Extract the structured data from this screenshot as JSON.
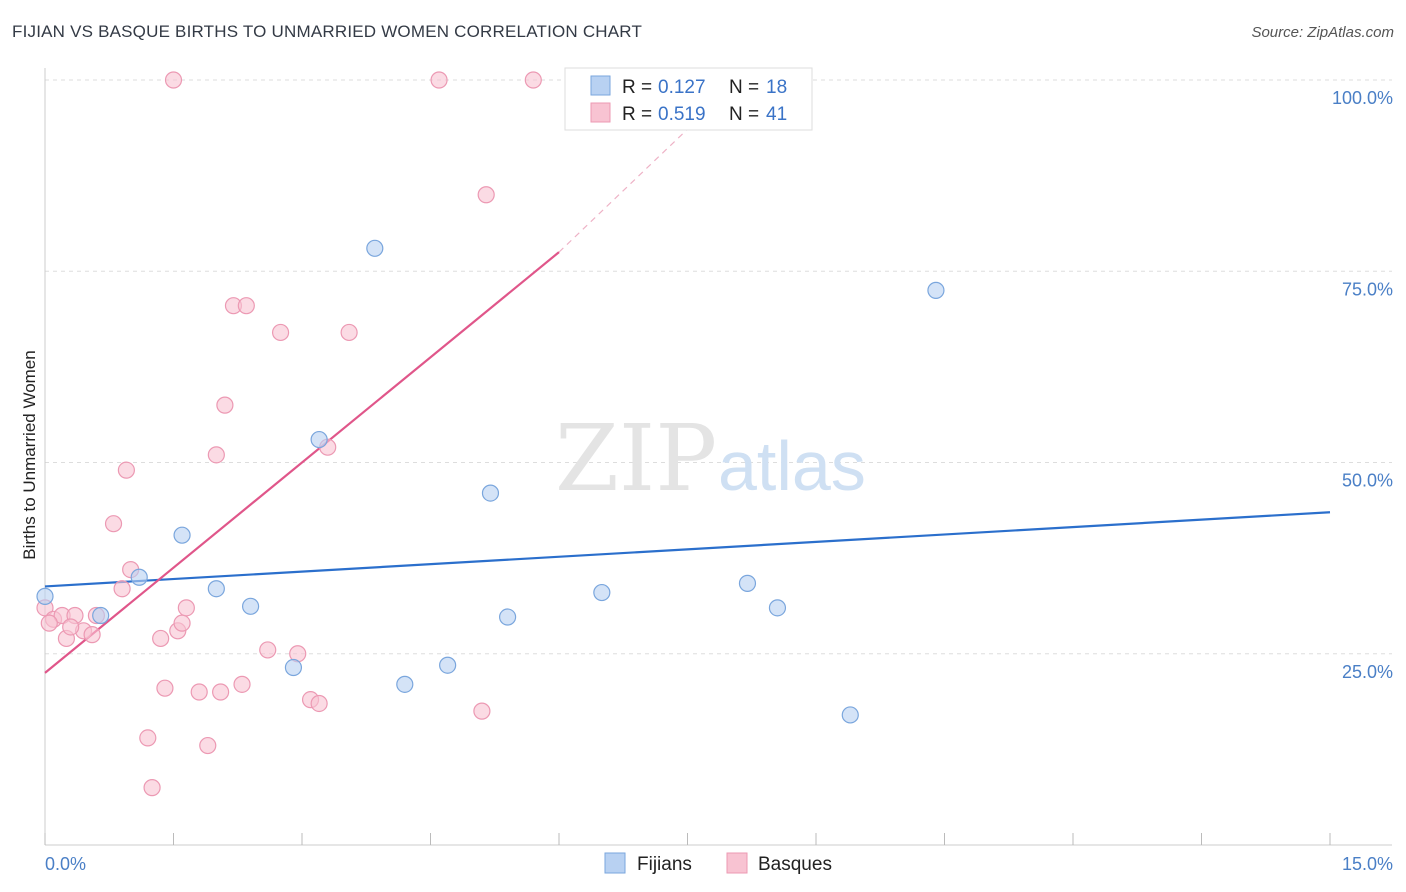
{
  "title": "FIJIAN VS BASQUE BIRTHS TO UNMARRIED WOMEN CORRELATION CHART",
  "source": "Source: ZipAtlas.com",
  "watermark": {
    "zip": "ZIP",
    "atlas": "atlas"
  },
  "colors": {
    "fijians_fill": "#b8d1f2",
    "fijians_stroke": "#7aa6dd",
    "fijians_line": "#2b6fcc",
    "basques_fill": "#f8c3d2",
    "basques_stroke": "#ec99b3",
    "basques_line": "#e0568a",
    "grid": "#dddddd",
    "tick_label": "#4a7fc6"
  },
  "chart_data": {
    "type": "scatter",
    "title": "FIJIAN VS BASQUE BIRTHS TO UNMARRIED WOMEN CORRELATION CHART",
    "xlabel": "",
    "ylabel": "Births to Unmarried Women",
    "xlim": [
      0,
      15
    ],
    "ylim": [
      0,
      100
    ],
    "x_tick_labels": [
      "0.0%",
      "15.0%"
    ],
    "y_ticks": [
      25,
      50,
      75,
      100
    ],
    "y_tick_labels": [
      "25.0%",
      "50.0%",
      "75.0%",
      "100.0%"
    ],
    "grid": true,
    "legend": [
      {
        "name": "Fijians",
        "r_label": "R =",
        "r_value": "0.127",
        "n_label": "N =",
        "n_value": "18"
      },
      {
        "name": "Basques",
        "r_label": "R =",
        "r_value": "0.519",
        "n_label": "N =",
        "n_value": "41"
      }
    ],
    "series": [
      {
        "name": "Fijians",
        "points": [
          [
            0.0,
            32.5
          ],
          [
            1.1,
            35.0
          ],
          [
            0.65,
            30.0
          ],
          [
            1.6,
            40.5
          ],
          [
            2.0,
            33.5
          ],
          [
            2.4,
            31.2
          ],
          [
            3.2,
            53.0
          ],
          [
            3.85,
            78.0
          ],
          [
            2.9,
            23.2
          ],
          [
            5.2,
            46.0
          ],
          [
            5.4,
            29.8
          ],
          [
            4.7,
            23.5
          ],
          [
            4.2,
            21.0
          ],
          [
            6.5,
            33.0
          ],
          [
            8.2,
            34.2
          ],
          [
            8.55,
            31.0
          ],
          [
            10.4,
            72.5
          ],
          [
            9.4,
            17.0
          ]
        ],
        "trend": {
          "x0": 0,
          "y0": 33.8,
          "x1": 15,
          "y1": 43.5
        }
      },
      {
        "name": "Basques",
        "points": [
          [
            0.0,
            31.0
          ],
          [
            0.1,
            29.5
          ],
          [
            0.2,
            30.0
          ],
          [
            0.25,
            27.0
          ],
          [
            0.35,
            30.0
          ],
          [
            0.45,
            28.0
          ],
          [
            0.55,
            27.5
          ],
          [
            0.6,
            30.0
          ],
          [
            0.8,
            42.0
          ],
          [
            0.9,
            33.5
          ],
          [
            0.95,
            49.0
          ],
          [
            1.0,
            36.0
          ],
          [
            1.2,
            14.0
          ],
          [
            1.25,
            7.5
          ],
          [
            1.35,
            27.0
          ],
          [
            1.4,
            20.5
          ],
          [
            1.55,
            28.0
          ],
          [
            1.6,
            29.0
          ],
          [
            1.65,
            31.0
          ],
          [
            1.8,
            20.0
          ],
          [
            1.9,
            13.0
          ],
          [
            2.0,
            51.0
          ],
          [
            2.05,
            20.0
          ],
          [
            2.1,
            57.5
          ],
          [
            2.2,
            70.5
          ],
          [
            2.3,
            21.0
          ],
          [
            2.35,
            70.5
          ],
          [
            2.6,
            25.5
          ],
          [
            2.75,
            67.0
          ],
          [
            2.95,
            25.0
          ],
          [
            3.1,
            19.0
          ],
          [
            3.2,
            18.5
          ],
          [
            3.3,
            52.0
          ],
          [
            3.55,
            67.0
          ],
          [
            5.1,
            17.5
          ],
          [
            5.15,
            85.0
          ],
          [
            1.5,
            100.0
          ],
          [
            4.6,
            100.0
          ],
          [
            5.7,
            100.0
          ],
          [
            0.3,
            28.5
          ],
          [
            0.05,
            29.0
          ]
        ],
        "trend": {
          "x0": 0,
          "y0": 22.5,
          "x1": 6.0,
          "y1": 77.5
        },
        "trend_dashed": {
          "x0": 6.0,
          "y0": 77.5,
          "x1": 8.1,
          "y1": 100.0
        }
      }
    ]
  }
}
